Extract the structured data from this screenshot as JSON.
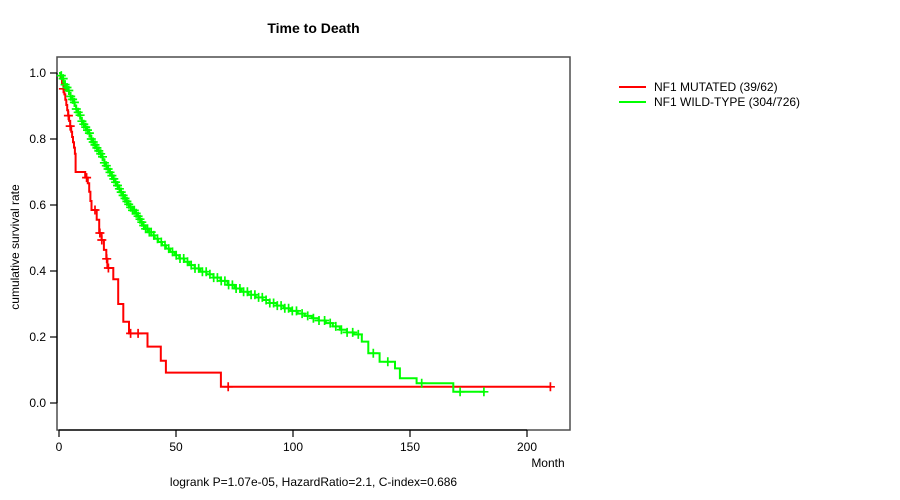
{
  "title": "Time to Death",
  "footer": "logrank P=1.07e-05, HazardRatio=2.1, C-index=0.686",
  "chart_data": {
    "type": "line",
    "subtype": "kaplan-meier-survival",
    "title": "Time to Death",
    "xlabel": "Month",
    "ylabel": "cumulative survival rate",
    "xlim": [
      0,
      218
    ],
    "ylim": [
      0,
      1.05
    ],
    "x_ticks": [
      0,
      50,
      100,
      150,
      200
    ],
    "y_ticks": [
      [
        0,
        "0.0"
      ],
      [
        0.2,
        "0.2"
      ],
      [
        0.4,
        "0.4"
      ],
      [
        0.6,
        "0.6"
      ],
      [
        0.8,
        "0.8"
      ],
      [
        1,
        "1.0"
      ]
    ],
    "grid": false,
    "legend_position": "outside-right",
    "annotation": "logrank P=1.07e-05, HazardRatio=2.1, C-index=0.686",
    "series": [
      {
        "name": "NF1 MUTATED (39/62)",
        "color": "#ff0000",
        "n_events": 39,
        "n_total": 62,
        "steps": [
          [
            0,
            1
          ],
          [
            0.7,
            0.984
          ],
          [
            1.3,
            0.968
          ],
          [
            1.9,
            0.952
          ],
          [
            2.3,
            0.935
          ],
          [
            2.7,
            0.919
          ],
          [
            3.1,
            0.903
          ],
          [
            3.5,
            0.887
          ],
          [
            3.9,
            0.871
          ],
          [
            4.3,
            0.855
          ],
          [
            4.8,
            0.839
          ],
          [
            5.2,
            0.822
          ],
          [
            5.6,
            0.806
          ],
          [
            6,
            0.79
          ],
          [
            6.4,
            0.774
          ],
          [
            6.8,
            0.755
          ],
          [
            7.1,
            0.7
          ],
          [
            11.2,
            0.683
          ],
          [
            12.3,
            0.666
          ],
          [
            12.9,
            0.64
          ],
          [
            13.4,
            0.612
          ],
          [
            13.9,
            0.585
          ],
          [
            16.1,
            0.555
          ],
          [
            17.2,
            0.515
          ],
          [
            18.2,
            0.494
          ],
          [
            19.2,
            0.464
          ],
          [
            20.2,
            0.437
          ],
          [
            20.7,
            0.409
          ],
          [
            23.2,
            0.375
          ],
          [
            25.3,
            0.3
          ],
          [
            27.5,
            0.246
          ],
          [
            29.9,
            0.211
          ],
          [
            37.8,
            0.171
          ],
          [
            43.5,
            0.128
          ],
          [
            45.7,
            0.092
          ],
          [
            69.2,
            0.049
          ],
          [
            210,
            0.049
          ]
        ],
        "censor_months": [
          1.9,
          4,
          4.8,
          11.8,
          15.4,
          17.5,
          18.3,
          20.4,
          21.1,
          30.6,
          33.8,
          72.3,
          210
        ]
      },
      {
        "name": "NF1 WILD-TYPE (304/726)",
        "color": "#00ff00",
        "n_events": 304,
        "n_total": 726,
        "steps": [
          [
            0,
            1
          ],
          [
            0.7,
            0.992
          ],
          [
            1.3,
            0.983
          ],
          [
            1.9,
            0.974
          ],
          [
            2.5,
            0.965
          ],
          [
            3.1,
            0.956
          ],
          [
            3.7,
            0.947
          ],
          [
            4.3,
            0.938
          ],
          [
            4.9,
            0.929
          ],
          [
            5.5,
            0.92
          ],
          [
            6.1,
            0.911
          ],
          [
            6.7,
            0.901
          ],
          [
            7.3,
            0.891
          ],
          [
            7.9,
            0.881
          ],
          [
            8.5,
            0.872
          ],
          [
            9.1,
            0.863
          ],
          [
            9.7,
            0.854
          ],
          [
            10.3,
            0.845
          ],
          [
            11,
            0.836
          ],
          [
            11.7,
            0.827
          ],
          [
            12.4,
            0.818
          ],
          [
            13.1,
            0.809
          ],
          [
            13.8,
            0.8
          ],
          [
            14.5,
            0.791
          ],
          [
            15.2,
            0.782
          ],
          [
            15.9,
            0.773
          ],
          [
            16.6,
            0.764
          ],
          [
            17.3,
            0.755
          ],
          [
            18,
            0.746
          ],
          [
            18.7,
            0.737
          ],
          [
            19.4,
            0.728
          ],
          [
            20.1,
            0.719
          ],
          [
            20.9,
            0.709
          ],
          [
            21.7,
            0.699
          ],
          [
            22.5,
            0.689
          ],
          [
            23.3,
            0.679
          ],
          [
            24.1,
            0.669
          ],
          [
            24.9,
            0.659
          ],
          [
            25.7,
            0.649
          ],
          [
            26.5,
            0.639
          ],
          [
            27.3,
            0.629
          ],
          [
            28.1,
            0.62
          ],
          [
            28.9,
            0.611
          ],
          [
            29.7,
            0.602
          ],
          [
            30.5,
            0.593
          ],
          [
            31.4,
            0.584
          ],
          [
            32.3,
            0.575
          ],
          [
            33.2,
            0.566
          ],
          [
            34.1,
            0.557
          ],
          [
            35,
            0.548
          ],
          [
            36,
            0.538
          ],
          [
            37,
            0.528
          ],
          [
            38.2,
            0.518
          ],
          [
            39.5,
            0.508
          ],
          [
            40.9,
            0.498
          ],
          [
            42.4,
            0.488
          ],
          [
            44,
            0.478
          ],
          [
            45.7,
            0.468
          ],
          [
            47.5,
            0.458
          ],
          [
            49.4,
            0.448
          ],
          [
            51.4,
            0.438
          ],
          [
            53.5,
            0.428
          ],
          [
            55.7,
            0.418
          ],
          [
            58,
            0.408
          ],
          [
            60.4,
            0.398
          ],
          [
            63,
            0.39
          ],
          [
            66,
            0.38
          ],
          [
            69,
            0.37
          ],
          [
            72,
            0.358
          ],
          [
            75,
            0.347
          ],
          [
            78,
            0.337
          ],
          [
            81,
            0.328
          ],
          [
            84,
            0.32
          ],
          [
            87,
            0.312
          ],
          [
            90,
            0.303
          ],
          [
            93,
            0.295
          ],
          [
            96,
            0.287
          ],
          [
            99,
            0.279
          ],
          [
            102,
            0.271
          ],
          [
            105,
            0.264
          ],
          [
            108,
            0.257
          ],
          [
            111,
            0.25
          ],
          [
            114,
            0.242
          ],
          [
            117,
            0.232
          ],
          [
            120,
            0.222
          ],
          [
            123,
            0.214
          ],
          [
            126,
            0.208
          ],
          [
            129.4,
            0.186
          ],
          [
            132.2,
            0.151
          ],
          [
            137,
            0.125
          ],
          [
            143.6,
            0.105
          ],
          [
            145.7,
            0.075
          ],
          [
            152.8,
            0.06
          ],
          [
            168.5,
            0.034
          ],
          [
            182,
            0.034
          ]
        ],
        "censor_months": [
          1,
          1.8,
          2.6,
          3.4,
          4.2,
          5,
          5.8,
          6.6,
          7.4,
          8.2,
          9,
          9.8,
          10.6,
          11.4,
          12.2,
          13,
          13.8,
          14.6,
          15.4,
          16.2,
          17,
          17.8,
          18.6,
          19.4,
          20.2,
          21,
          21.8,
          22.6,
          23.4,
          24.2,
          25,
          25.8,
          26.6,
          27.4,
          28.2,
          29,
          29.8,
          30.6,
          31.4,
          32.2,
          33,
          33.8,
          34.6,
          35.4,
          36.2,
          37,
          37.8,
          38.6,
          39.4,
          40.5,
          42.1,
          43.7,
          45.3,
          46.9,
          48.5,
          50.1,
          51.7,
          53.3,
          54.9,
          56.5,
          58.1,
          59.7,
          61.3,
          62.9,
          64.5,
          66.1,
          67.7,
          69.3,
          70.9,
          72.5,
          74.1,
          75.7,
          77.3,
          78.9,
          80.5,
          82.1,
          83.7,
          85.3,
          86.9,
          88.5,
          90.1,
          91.7,
          93.3,
          94.9,
          96.5,
          98.1,
          99.7,
          101.5,
          103.9,
          106.3,
          108.7,
          111.1,
          113.5,
          115.9,
          118.3,
          120.7,
          123.1,
          125.5,
          127.9,
          134.3,
          140.5,
          155,
          171.4,
          181.6
        ]
      }
    ]
  }
}
